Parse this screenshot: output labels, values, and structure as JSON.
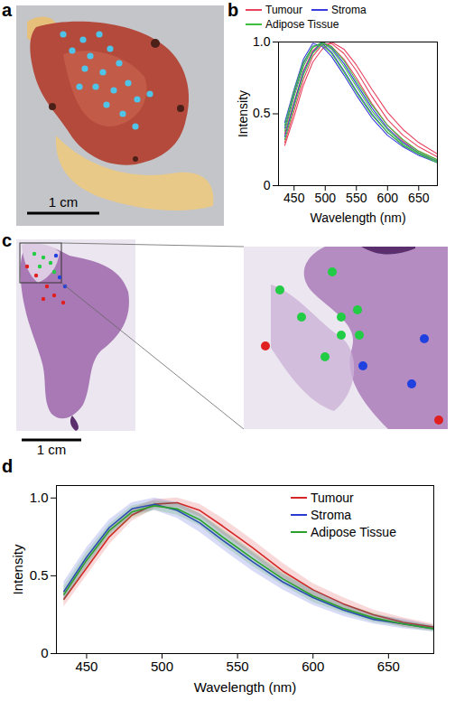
{
  "chart_data": [
    {
      "panel": "b",
      "type": "line",
      "x_label": "Wavelength (nm)",
      "y_label": "Intensity",
      "x": [
        435,
        450,
        465,
        480,
        495,
        510,
        530,
        550,
        575,
        600,
        625,
        650,
        680
      ],
      "xlim": [
        425,
        680
      ],
      "xticks": [
        450,
        500,
        550,
        600,
        650
      ],
      "ylim": [
        0,
        1
      ],
      "yticks": [
        0,
        0.5,
        {
          "value": 1,
          "label": "1.0"
        }
      ],
      "legend": "top",
      "series": [
        {
          "name": "Tumour",
          "color": "#e8435f",
          "values": [
            [
              0.3,
              0.52,
              0.74,
              0.9,
              0.98,
              0.99,
              0.92,
              0.8,
              0.62,
              0.46,
              0.35,
              0.27,
              0.2
            ],
            [
              0.36,
              0.58,
              0.8,
              0.94,
              1.0,
              0.97,
              0.88,
              0.75,
              0.57,
              0.42,
              0.31,
              0.24,
              0.18
            ],
            [
              0.28,
              0.48,
              0.7,
              0.86,
              0.95,
              1.0,
              0.95,
              0.84,
              0.67,
              0.51,
              0.39,
              0.3,
              0.22
            ]
          ]
        },
        {
          "name": "Stroma",
          "color": "#3a3adf",
          "values": [
            [
              0.4,
              0.64,
              0.85,
              0.97,
              0.99,
              0.93,
              0.8,
              0.66,
              0.5,
              0.37,
              0.28,
              0.22,
              0.17
            ],
            [
              0.34,
              0.57,
              0.79,
              0.93,
              1.0,
              0.96,
              0.85,
              0.71,
              0.54,
              0.4,
              0.3,
              0.23,
              0.17
            ],
            [
              0.44,
              0.67,
              0.88,
              0.99,
              0.97,
              0.9,
              0.77,
              0.63,
              0.47,
              0.35,
              0.27,
              0.21,
              0.16
            ]
          ]
        },
        {
          "name": "Adipose Tissue",
          "color": "#3fbf3f",
          "values": [
            [
              0.38,
              0.62,
              0.83,
              0.96,
              1.0,
              0.95,
              0.83,
              0.69,
              0.52,
              0.39,
              0.29,
              0.23,
              0.17
            ],
            [
              0.32,
              0.55,
              0.77,
              0.92,
              0.99,
              0.97,
              0.87,
              0.73,
              0.56,
              0.42,
              0.32,
              0.24,
              0.18
            ],
            [
              0.42,
              0.66,
              0.86,
              0.97,
              0.98,
              0.92,
              0.79,
              0.65,
              0.49,
              0.37,
              0.28,
              0.22,
              0.16
            ]
          ]
        }
      ]
    },
    {
      "panel": "d",
      "type": "line",
      "x_label": "Wavelength (nm)",
      "y_label": "Intensity",
      "x": [
        435,
        450,
        465,
        480,
        495,
        510,
        525,
        540,
        560,
        580,
        600,
        620,
        640,
        660,
        680
      ],
      "xlim": [
        430,
        680
      ],
      "xticks": [
        450,
        500,
        550,
        600,
        650
      ],
      "ylim": [
        0,
        1.08
      ],
      "yticks": [
        0,
        0.5,
        {
          "value": 1,
          "label": "1.0"
        }
      ],
      "legend": "top-right",
      "series": [
        {
          "name": "Tumour",
          "color": "#d62728",
          "values": [
            0.35,
            0.55,
            0.75,
            0.89,
            0.96,
            0.97,
            0.92,
            0.82,
            0.68,
            0.53,
            0.41,
            0.32,
            0.25,
            0.2,
            0.17
          ],
          "std": [
            0.05,
            0.05,
            0.05,
            0.04,
            0.03,
            0.03,
            0.04,
            0.05,
            0.05,
            0.05,
            0.04,
            0.04,
            0.03,
            0.03,
            0.02
          ]
        },
        {
          "name": "Stroma",
          "color": "#2a3bd0",
          "values": [
            0.4,
            0.62,
            0.81,
            0.93,
            0.96,
            0.92,
            0.84,
            0.73,
            0.59,
            0.46,
            0.36,
            0.28,
            0.22,
            0.19,
            0.16
          ],
          "std": [
            0.06,
            0.06,
            0.05,
            0.04,
            0.04,
            0.05,
            0.06,
            0.06,
            0.06,
            0.05,
            0.05,
            0.04,
            0.03,
            0.03,
            0.02
          ]
        },
        {
          "name": "Adipose Tissue",
          "color": "#2ca02c",
          "values": [
            0.38,
            0.6,
            0.79,
            0.91,
            0.95,
            0.93,
            0.86,
            0.75,
            0.61,
            0.48,
            0.37,
            0.29,
            0.23,
            0.19,
            0.16
          ],
          "std": [
            0.05,
            0.05,
            0.04,
            0.04,
            0.03,
            0.04,
            0.04,
            0.05,
            0.05,
            0.04,
            0.04,
            0.03,
            0.03,
            0.02,
            0.02
          ]
        }
      ]
    }
  ],
  "images": [
    {
      "panel": "a",
      "scale_bar": "1 cm"
    },
    {
      "panel": "c",
      "scale_bar": "1 cm"
    }
  ]
}
